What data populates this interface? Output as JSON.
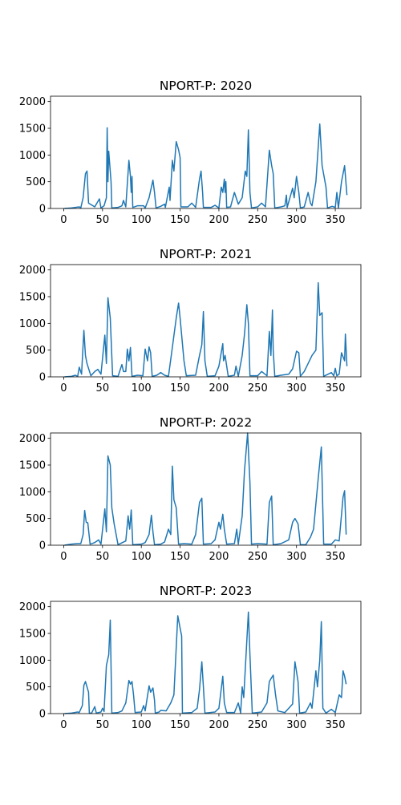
{
  "chart_data": [
    {
      "type": "line",
      "title": "NPORT-P: 2020",
      "color": "#1f77b4",
      "xlim": [
        -17,
        383
      ],
      "ylim": [
        0,
        2100
      ],
      "xticks": [
        0,
        50,
        100,
        150,
        200,
        250,
        300,
        350
      ],
      "yticks": [
        0,
        500,
        1000,
        1500,
        2000
      ],
      "x": [
        1,
        10,
        20,
        22,
        25,
        28,
        30,
        32,
        40,
        46,
        48,
        52,
        55,
        56,
        57,
        58,
        61,
        62,
        70,
        75,
        77,
        80,
        84,
        86,
        87,
        88,
        89,
        95,
        103,
        105,
        110,
        113,
        115,
        117,
        119,
        125,
        130,
        131,
        136,
        137,
        140,
        142,
        145,
        148,
        150,
        151,
        160,
        165,
        170,
        175,
        177,
        179,
        180,
        190,
        195,
        200,
        203,
        205,
        207,
        208,
        209,
        210,
        215,
        220,
        225,
        230,
        234,
        236,
        238,
        240,
        242,
        250,
        255,
        260,
        265,
        268,
        270,
        272,
        280,
        285,
        287,
        288,
        295,
        297,
        300,
        303,
        305,
        310,
        315,
        318,
        320,
        325,
        330,
        333,
        338,
        340,
        346,
        350,
        352,
        354,
        358,
        362,
        365
      ],
      "values": [
        0,
        10,
        30,
        10,
        200,
        650,
        700,
        100,
        30,
        180,
        10,
        50,
        200,
        1510,
        500,
        1070,
        500,
        10,
        20,
        50,
        150,
        30,
        900,
        600,
        300,
        600,
        20,
        50,
        50,
        10,
        200,
        400,
        530,
        300,
        10,
        40,
        80,
        20,
        400,
        150,
        900,
        700,
        1250,
        1100,
        950,
        30,
        30,
        100,
        20,
        550,
        700,
        300,
        20,
        20,
        60,
        10,
        400,
        300,
        550,
        300,
        500,
        20,
        30,
        300,
        80,
        200,
        700,
        600,
        1470,
        300,
        10,
        30,
        100,
        30,
        1090,
        800,
        650,
        10,
        30,
        50,
        250,
        20,
        380,
        200,
        600,
        300,
        10,
        30,
        300,
        100,
        50,
        500,
        1580,
        800,
        400,
        10,
        40,
        20,
        300,
        10,
        500,
        800,
        250
      ]
    },
    {
      "type": "line",
      "title": "NPORT-P: 2021",
      "color": "#1f77b4",
      "xlim": [
        -17,
        383
      ],
      "ylim": [
        0,
        2100
      ],
      "xticks": [
        0,
        50,
        100,
        150,
        200,
        250,
        300,
        350
      ],
      "yticks": [
        0,
        500,
        1000,
        1500,
        2000
      ],
      "x": [
        1,
        10,
        15,
        18,
        20,
        23,
        26,
        28,
        30,
        35,
        40,
        44,
        48,
        53,
        55,
        57,
        60,
        63,
        70,
        75,
        77,
        80,
        82,
        84,
        86,
        88,
        95,
        102,
        105,
        108,
        110,
        112,
        114,
        120,
        125,
        130,
        135,
        140,
        145,
        148,
        150,
        155,
        158,
        170,
        175,
        178,
        180,
        182,
        185,
        195,
        200,
        205,
        206,
        208,
        212,
        220,
        222,
        225,
        230,
        233,
        236,
        238,
        240,
        250,
        255,
        262,
        265,
        267,
        269,
        270,
        272,
        280,
        290,
        295,
        300,
        303,
        305,
        310,
        320,
        325,
        328,
        330,
        333,
        335,
        345,
        348,
        350,
        352,
        355,
        358,
        362,
        363,
        365
      ],
      "values": [
        0,
        10,
        30,
        10,
        180,
        50,
        870,
        400,
        250,
        20,
        100,
        140,
        50,
        780,
        250,
        1480,
        1100,
        20,
        10,
        230,
        100,
        100,
        520,
        300,
        550,
        10,
        30,
        20,
        520,
        300,
        560,
        450,
        10,
        30,
        80,
        30,
        10,
        550,
        1100,
        1380,
        1100,
        300,
        20,
        30,
        400,
        600,
        1220,
        300,
        10,
        20,
        200,
        620,
        300,
        400,
        10,
        30,
        200,
        10,
        400,
        800,
        1350,
        1000,
        20,
        20,
        100,
        20,
        850,
        400,
        1250,
        500,
        10,
        30,
        50,
        150,
        480,
        450,
        10,
        100,
        400,
        500,
        1760,
        1150,
        1200,
        10,
        80,
        20,
        160,
        20,
        50,
        450,
        300,
        800,
        200
      ]
    },
    {
      "type": "line",
      "title": "NPORT-P: 2022",
      "color": "#1f77b4",
      "xlim": [
        -17,
        383
      ],
      "ylim": [
        0,
        2100
      ],
      "xticks": [
        0,
        50,
        100,
        150,
        200,
        250,
        300,
        350
      ],
      "yticks": [
        0,
        500,
        1000,
        1500,
        2000
      ],
      "x": [
        1,
        10,
        18,
        22,
        25,
        27,
        29,
        31,
        34,
        40,
        45,
        48,
        53,
        55,
        57,
        60,
        62,
        65,
        70,
        80,
        83,
        85,
        87,
        89,
        100,
        105,
        110,
        113,
        115,
        117,
        125,
        130,
        135,
        138,
        140,
        142,
        145,
        148,
        155,
        165,
        170,
        175,
        178,
        180,
        190,
        195,
        200,
        202,
        205,
        207,
        210,
        220,
        223,
        225,
        230,
        233,
        237,
        240,
        242,
        250,
        262,
        265,
        268,
        270,
        280,
        290,
        295,
        298,
        302,
        305,
        312,
        318,
        322,
        328,
        332,
        335,
        345,
        350,
        355,
        360,
        362,
        364
      ],
      "values": [
        0,
        20,
        30,
        30,
        200,
        650,
        430,
        420,
        20,
        50,
        100,
        20,
        680,
        250,
        1670,
        1500,
        700,
        400,
        10,
        80,
        550,
        300,
        660,
        10,
        20,
        50,
        200,
        560,
        250,
        10,
        20,
        60,
        300,
        200,
        1480,
        850,
        700,
        20,
        30,
        20,
        200,
        800,
        880,
        20,
        30,
        100,
        430,
        300,
        580,
        300,
        20,
        30,
        300,
        20,
        550,
        1400,
        2100,
        1170,
        20,
        30,
        20,
        800,
        920,
        10,
        30,
        100,
        430,
        500,
        400,
        10,
        10,
        150,
        300,
        1250,
        1840,
        20,
        20,
        100,
        80,
        900,
        1020,
        200
      ]
    },
    {
      "type": "line",
      "title": "NPORT-P: 2023",
      "color": "#1f77b4",
      "xlim": [
        -17,
        383
      ],
      "ylim": [
        0,
        2100
      ],
      "xticks": [
        0,
        50,
        100,
        150,
        200,
        250,
        300,
        350
      ],
      "yticks": [
        0,
        500,
        1000,
        1500,
        2000
      ],
      "x": [
        1,
        10,
        18,
        20,
        24,
        26,
        28,
        32,
        33,
        36,
        40,
        42,
        48,
        50,
        52,
        55,
        58,
        60,
        62,
        70,
        75,
        80,
        84,
        86,
        88,
        90,
        92,
        100,
        103,
        105,
        110,
        112,
        115,
        117,
        118,
        123,
        125,
        132,
        138,
        142,
        147,
        150,
        152,
        153,
        165,
        172,
        175,
        178,
        180,
        182,
        195,
        200,
        205,
        207,
        210,
        220,
        225,
        228,
        230,
        232,
        238,
        240,
        243,
        255,
        262,
        265,
        267,
        270,
        273,
        276,
        285,
        290,
        295,
        298,
        302,
        304,
        312,
        318,
        320,
        325,
        327,
        330,
        332,
        334,
        338,
        345,
        350,
        355,
        358,
        360,
        362,
        364
      ],
      "values": [
        0,
        10,
        30,
        20,
        150,
        530,
        600,
        400,
        10,
        10,
        130,
        10,
        30,
        100,
        40,
        900,
        1100,
        1750,
        10,
        20,
        50,
        200,
        620,
        550,
        600,
        350,
        20,
        30,
        150,
        50,
        520,
        400,
        480,
        250,
        10,
        30,
        60,
        50,
        200,
        350,
        1830,
        1600,
        1450,
        10,
        20,
        100,
        450,
        970,
        500,
        10,
        30,
        100,
        700,
        200,
        20,
        20,
        200,
        10,
        500,
        300,
        1900,
        1100,
        10,
        30,
        200,
        600,
        650,
        720,
        350,
        50,
        20,
        100,
        180,
        970,
        600,
        10,
        30,
        200,
        100,
        800,
        500,
        1000,
        1720,
        100,
        10,
        80,
        20,
        350,
        300,
        800,
        700,
        550
      ]
    }
  ]
}
